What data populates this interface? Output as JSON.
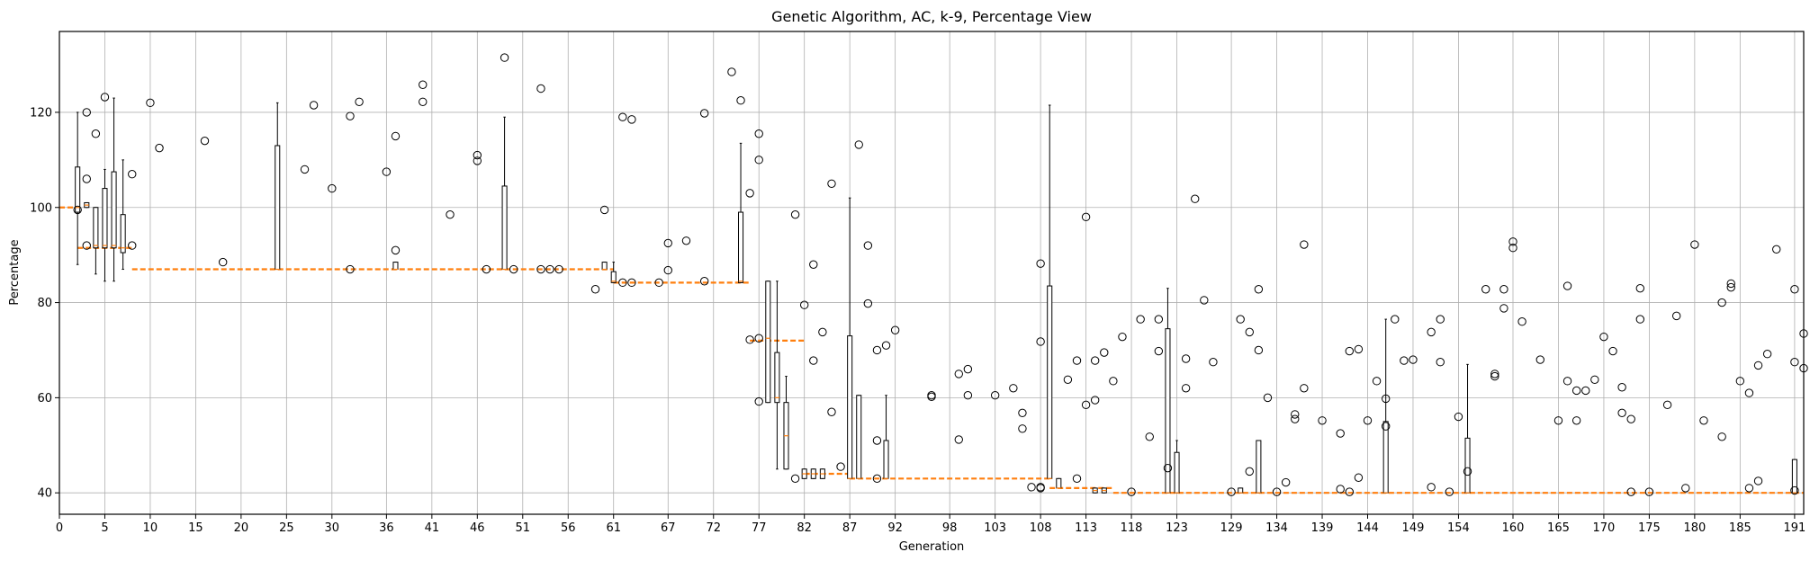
{
  "chart_data": {
    "type": "box",
    "title": "Genetic Algorithm, AC, k-9, Percentage View",
    "xlabel": "Generation",
    "ylabel": "Percentage",
    "xlim": [
      0,
      192
    ],
    "ylim": [
      35.5,
      137
    ],
    "grid": true,
    "x_ticks": [
      0,
      5,
      10,
      15,
      20,
      25,
      30,
      36,
      41,
      46,
      51,
      56,
      61,
      67,
      72,
      77,
      82,
      87,
      92,
      98,
      103,
      108,
      113,
      118,
      123,
      129,
      134,
      139,
      144,
      149,
      154,
      160,
      165,
      170,
      175,
      180,
      185,
      191
    ],
    "y_ticks": [
      40,
      60,
      80,
      100,
      120
    ],
    "median_line": {
      "style": "dashed",
      "color": "#ff7f0e",
      "segments": [
        {
          "x": [
            0,
            2
          ],
          "y": 100
        },
        {
          "x": [
            2,
            8
          ],
          "y": 91.5
        },
        {
          "x": [
            8,
            61
          ],
          "y": 87
        },
        {
          "x": [
            61,
            76
          ],
          "y": 84.2
        },
        {
          "x": [
            76,
            82
          ],
          "y": 72
        },
        {
          "x": [
            82,
            87
          ],
          "y": 44
        },
        {
          "x": [
            87,
            109
          ],
          "y": 43
        },
        {
          "x": [
            109,
            116
          ],
          "y": 41
        },
        {
          "x": [
            116,
            192
          ],
          "y": 40
        }
      ]
    },
    "boxes": [
      {
        "x": 2,
        "q1": 99,
        "median": 100,
        "q3": 108.5,
        "whislo": 88,
        "whishi": 120
      },
      {
        "x": 3,
        "q1": 100,
        "median": 100.5,
        "q3": 101,
        "whislo": 100,
        "whishi": 101
      },
      {
        "x": 4,
        "q1": 91.5,
        "median": 92,
        "q3": 100,
        "whislo": 86,
        "whishi": 100
      },
      {
        "x": 5,
        "q1": 91.5,
        "median": 92,
        "q3": 104,
        "whislo": 84.5,
        "whishi": 108
      },
      {
        "x": 6,
        "q1": 91.5,
        "median": 92,
        "q3": 107.5,
        "whislo": 84.5,
        "whishi": 123
      },
      {
        "x": 7,
        "q1": 90.5,
        "median": 91.5,
        "q3": 98.5,
        "whislo": 87,
        "whishi": 110
      },
      {
        "x": 24,
        "q1": 87,
        "median": 87,
        "q3": 113,
        "whislo": 87,
        "whishi": 122
      },
      {
        "x": 37,
        "q1": 87,
        "median": 87,
        "q3": 88.5,
        "whislo": 87,
        "whishi": 88.5
      },
      {
        "x": 49,
        "q1": 87,
        "median": 87,
        "q3": 104.5,
        "whislo": 87,
        "whishi": 119
      },
      {
        "x": 60,
        "q1": 87,
        "median": 87,
        "q3": 88.5,
        "whislo": 87,
        "whishi": 88.5
      },
      {
        "x": 61,
        "q1": 84.2,
        "median": 84.5,
        "q3": 86.5,
        "whislo": 84.2,
        "whishi": 88.5
      },
      {
        "x": 75,
        "q1": 84.2,
        "median": 84.5,
        "q3": 99,
        "whislo": 84.2,
        "whishi": 113.5
      },
      {
        "x": 78,
        "q1": 59,
        "median": 72.5,
        "q3": 84.5,
        "whislo": 59,
        "whishi": 84.5
      },
      {
        "x": 79,
        "q1": 59,
        "median": 60,
        "q3": 69.5,
        "whislo": 45,
        "whishi": 84.5
      },
      {
        "x": 80,
        "q1": 45,
        "median": 52,
        "q3": 59,
        "whislo": 45,
        "whishi": 64.5
      },
      {
        "x": 82,
        "q1": 43,
        "median": 44,
        "q3": 45,
        "whislo": 43,
        "whishi": 45
      },
      {
        "x": 83,
        "q1": 43,
        "median": 44,
        "q3": 45,
        "whislo": 43,
        "whishi": 45
      },
      {
        "x": 84,
        "q1": 43,
        "median": 44,
        "q3": 45,
        "whislo": 43,
        "whishi": 45
      },
      {
        "x": 87,
        "q1": 43,
        "median": 43,
        "q3": 73,
        "whislo": 43,
        "whishi": 102
      },
      {
        "x": 88,
        "q1": 43,
        "median": 43,
        "q3": 60.5,
        "whislo": 43,
        "whishi": 60.5
      },
      {
        "x": 91,
        "q1": 43,
        "median": 43,
        "q3": 51,
        "whislo": 43,
        "whishi": 60.5
      },
      {
        "x": 109,
        "q1": 43,
        "median": 43,
        "q3": 83.5,
        "whislo": 43,
        "whishi": 121.5
      },
      {
        "x": 110,
        "q1": 41,
        "median": 41,
        "q3": 43,
        "whislo": 41,
        "whishi": 43
      },
      {
        "x": 114,
        "q1": 40,
        "median": 40.5,
        "q3": 41,
        "whislo": 40,
        "whishi": 41
      },
      {
        "x": 115,
        "q1": 40,
        "median": 40.5,
        "q3": 41,
        "whislo": 40,
        "whishi": 41
      },
      {
        "x": 122,
        "q1": 40,
        "median": 40,
        "q3": 74.5,
        "whislo": 40,
        "whishi": 83
      },
      {
        "x": 123,
        "q1": 40,
        "median": 40,
        "q3": 48.5,
        "whislo": 40,
        "whishi": 51
      },
      {
        "x": 130,
        "q1": 40,
        "median": 40,
        "q3": 41,
        "whislo": 40,
        "whishi": 41
      },
      {
        "x": 132,
        "q1": 40,
        "median": 40,
        "q3": 51,
        "whislo": 40,
        "whishi": 51
      },
      {
        "x": 146,
        "q1": 40,
        "median": 40,
        "q3": 55,
        "whislo": 40,
        "whishi": 76.5
      },
      {
        "x": 155,
        "q1": 40,
        "median": 40,
        "q3": 51.5,
        "whislo": 40,
        "whishi": 67
      },
      {
        "x": 191,
        "q1": 40,
        "median": 40,
        "q3": 47,
        "whislo": 40,
        "whishi": 47
      }
    ],
    "outliers": [
      [
        2,
        99.5
      ],
      [
        3,
        120
      ],
      [
        3,
        106
      ],
      [
        3,
        92
      ],
      [
        4,
        115.5
      ],
      [
        5,
        123.2
      ],
      [
        8,
        107
      ],
      [
        8,
        92
      ],
      [
        10,
        122
      ],
      [
        11,
        112.5
      ],
      [
        16,
        114
      ],
      [
        18,
        88.5
      ],
      [
        28,
        121.5
      ],
      [
        27,
        108
      ],
      [
        30,
        104
      ],
      [
        32,
        119.2
      ],
      [
        32,
        87
      ],
      [
        33,
        122.2
      ],
      [
        36,
        107.5
      ],
      [
        37,
        115
      ],
      [
        37,
        91
      ],
      [
        40,
        122.2
      ],
      [
        40,
        125.8
      ],
      [
        43,
        98.5
      ],
      [
        46,
        111
      ],
      [
        46,
        109.8
      ],
      [
        47,
        87
      ],
      [
        49,
        131.5
      ],
      [
        50,
        87
      ],
      [
        53,
        125
      ],
      [
        53,
        87
      ],
      [
        54,
        87
      ],
      [
        55,
        87
      ],
      [
        59,
        82.8
      ],
      [
        60,
        99.5
      ],
      [
        62,
        119
      ],
      [
        63,
        118.5
      ],
      [
        62,
        84.2
      ],
      [
        63,
        84.2
      ],
      [
        66,
        84.2
      ],
      [
        67,
        92.5
      ],
      [
        67,
        86.8
      ],
      [
        69,
        93
      ],
      [
        71,
        119.8
      ],
      [
        71,
        84.5
      ],
      [
        74,
        128.5
      ],
      [
        75,
        122.5
      ],
      [
        76,
        103
      ],
      [
        76,
        72.2
      ],
      [
        77,
        115.5
      ],
      [
        77,
        110
      ],
      [
        77,
        59.2
      ],
      [
        77,
        72.5
      ],
      [
        81,
        98.5
      ],
      [
        81,
        43
      ],
      [
        82,
        79.5
      ],
      [
        83,
        88
      ],
      [
        83,
        67.8
      ],
      [
        84,
        73.8
      ],
      [
        85,
        105
      ],
      [
        85,
        57
      ],
      [
        86,
        45.5
      ],
      [
        88,
        113.2
      ],
      [
        89,
        92
      ],
      [
        89,
        79.8
      ],
      [
        90,
        70
      ],
      [
        90,
        51
      ],
      [
        90,
        43
      ],
      [
        91,
        71
      ],
      [
        92,
        74.2
      ],
      [
        96,
        60.2
      ],
      [
        96,
        60.5
      ],
      [
        99,
        65
      ],
      [
        99,
        51.2
      ],
      [
        100,
        66
      ],
      [
        100,
        60.5
      ],
      [
        103,
        60.5
      ],
      [
        105,
        62
      ],
      [
        106,
        56.8
      ],
      [
        106,
        53.5
      ],
      [
        107,
        41.2
      ],
      [
        108,
        41.2
      ],
      [
        108,
        41
      ],
      [
        108,
        88.2
      ],
      [
        108,
        71.8
      ],
      [
        111,
        63.8
      ],
      [
        112,
        43
      ],
      [
        112,
        67.8
      ],
      [
        113,
        98
      ],
      [
        113,
        58.5
      ],
      [
        114,
        59.5
      ],
      [
        114,
        67.8
      ],
      [
        115,
        69.5
      ],
      [
        116,
        63.5
      ],
      [
        117,
        72.8
      ],
      [
        118,
        40.2
      ],
      [
        119,
        76.5
      ],
      [
        120,
        51.8
      ],
      [
        121,
        76.5
      ],
      [
        121,
        69.8
      ],
      [
        122,
        45.2
      ],
      [
        124,
        68.2
      ],
      [
        124,
        62
      ],
      [
        125,
        101.8
      ],
      [
        126,
        80.5
      ],
      [
        127,
        67.5
      ],
      [
        129,
        40.2
      ],
      [
        130,
        76.5
      ],
      [
        131,
        73.8
      ],
      [
        131,
        44.5
      ],
      [
        132,
        70
      ],
      [
        132,
        82.8
      ],
      [
        133,
        60
      ],
      [
        134,
        40.2
      ],
      [
        135,
        42.2
      ],
      [
        136,
        56.5
      ],
      [
        136,
        55.5
      ],
      [
        137,
        92.2
      ],
      [
        137,
        62
      ],
      [
        139,
        55.2
      ],
      [
        141,
        52.5
      ],
      [
        141,
        40.8
      ],
      [
        142,
        40.2
      ],
      [
        142,
        69.8
      ],
      [
        143,
        70.2
      ],
      [
        143,
        43.2
      ],
      [
        144,
        55.2
      ],
      [
        145,
        63.5
      ],
      [
        146,
        59.8
      ],
      [
        146,
        54
      ],
      [
        147,
        76.5
      ],
      [
        148,
        67.8
      ],
      [
        149,
        68
      ],
      [
        151,
        73.8
      ],
      [
        151,
        41.2
      ],
      [
        152,
        76.5
      ],
      [
        152,
        67.5
      ],
      [
        153,
        40.2
      ],
      [
        154,
        56
      ],
      [
        155,
        44.5
      ],
      [
        157,
        82.8
      ],
      [
        158,
        64.5
      ],
      [
        158,
        65
      ],
      [
        159,
        78.8
      ],
      [
        159,
        82.8
      ],
      [
        160,
        92.8
      ],
      [
        160,
        91.5
      ],
      [
        161,
        76
      ],
      [
        163,
        68
      ],
      [
        165,
        55.2
      ],
      [
        166,
        83.5
      ],
      [
        166,
        63.5
      ],
      [
        167,
        61.5
      ],
      [
        167,
        55.2
      ],
      [
        168,
        61.5
      ],
      [
        169,
        63.8
      ],
      [
        170,
        72.8
      ],
      [
        171,
        69.8
      ],
      [
        172,
        56.8
      ],
      [
        172,
        62.2
      ],
      [
        173,
        55.5
      ],
      [
        173,
        40.2
      ],
      [
        174,
        76.5
      ],
      [
        174,
        83
      ],
      [
        175,
        40.2
      ],
      [
        177,
        58.5
      ],
      [
        178,
        77.2
      ],
      [
        179,
        41
      ],
      [
        180,
        92.2
      ],
      [
        181,
        55.2
      ],
      [
        183,
        80
      ],
      [
        183,
        51.8
      ],
      [
        184,
        83.2
      ],
      [
        184,
        84
      ],
      [
        185,
        63.5
      ],
      [
        186,
        61
      ],
      [
        186,
        41
      ],
      [
        187,
        66.8
      ],
      [
        187,
        42.5
      ],
      [
        188,
        69.2
      ],
      [
        189,
        91.2
      ],
      [
        191,
        82.8
      ],
      [
        191,
        67.5
      ],
      [
        191,
        40.5
      ],
      [
        192,
        73.5
      ],
      [
        192,
        66.2
      ]
    ]
  }
}
